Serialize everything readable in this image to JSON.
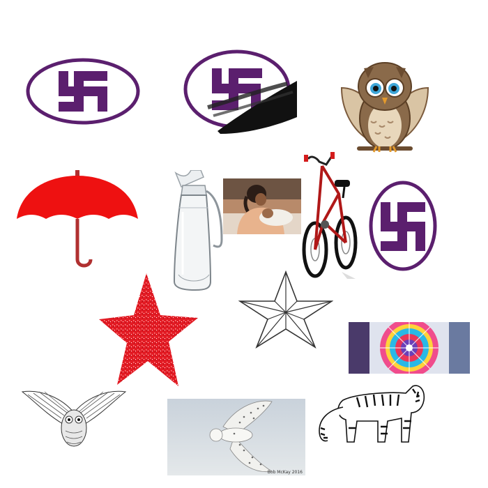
{
  "canvas": {
    "background": "#ffffff"
  },
  "colors": {
    "swastika_purple": "#5b1f6e",
    "umbrella_red": "#ee1111",
    "star_red": "#e21b24",
    "owl_brown": "#7b5a3c",
    "owl_tan": "#d9c4a4"
  },
  "items": [
    {
      "icon": "swastika-emblem-icon"
    },
    {
      "icon": "swastika-emblem-smudged-icon"
    },
    {
      "icon": "cartoon-owl-icon"
    },
    {
      "icon": "red-umbrella-icon"
    },
    {
      "icon": "glass-jug-icon"
    },
    {
      "icon": "mother-and-child-photo"
    },
    {
      "icon": "bicycle-icon"
    },
    {
      "icon": "swastika-circle-icon"
    },
    {
      "icon": "red-glitter-star-icon"
    },
    {
      "icon": "outline-star-icon"
    },
    {
      "icon": "mandala-pattern-icon"
    },
    {
      "icon": "ornate-owl-icon"
    },
    {
      "icon": "snowy-owl-photo"
    },
    {
      "icon": "tiger-sketch-icon"
    }
  ],
  "snowy_owl_credit": "Bob McKay 2016"
}
